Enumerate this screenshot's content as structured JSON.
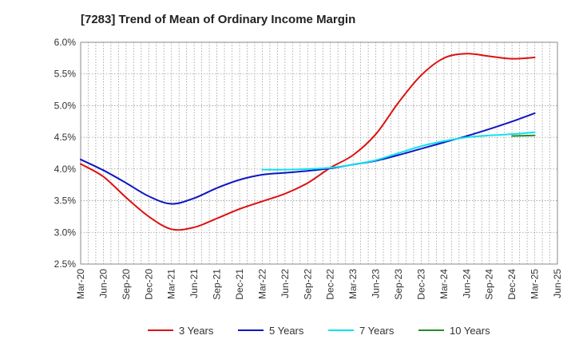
{
  "chart_data": {
    "type": "line",
    "title": "[7283]  Trend of Mean of Ordinary Income Margin",
    "xlabel": "",
    "ylabel": "",
    "x_ticks": [
      "Mar-20",
      "Jun-20",
      "Sep-20",
      "Dec-20",
      "Mar-21",
      "Jun-21",
      "Sep-21",
      "Dec-21",
      "Mar-22",
      "Jun-22",
      "Sep-22",
      "Dec-22",
      "Mar-23",
      "Jun-23",
      "Sep-23",
      "Dec-23",
      "Mar-24",
      "Jun-24",
      "Sep-24",
      "Dec-24",
      "Mar-25",
      "Jun-25"
    ],
    "y_ticks": [
      "2.5%",
      "3.0%",
      "3.5%",
      "4.0%",
      "4.5%",
      "5.0%",
      "5.5%",
      "6.0%"
    ],
    "ylim": [
      2.5,
      6.0
    ],
    "grid": true,
    "legend_position": "bottom",
    "series": [
      {
        "name": "3 Years",
        "color": "#dd1111",
        "x": [
          "Mar-20",
          "Jun-20",
          "Sep-20",
          "Dec-20",
          "Mar-21",
          "Jun-21",
          "Sep-21",
          "Dec-21",
          "Mar-22",
          "Jun-22",
          "Sep-22",
          "Dec-22",
          "Mar-23",
          "Jun-23",
          "Sep-23",
          "Dec-23",
          "Mar-24",
          "Jun-24",
          "Sep-24",
          "Dec-24",
          "Mar-25"
        ],
        "values": [
          4.08,
          3.88,
          3.55,
          3.25,
          3.05,
          3.08,
          3.22,
          3.37,
          3.49,
          3.61,
          3.78,
          4.02,
          4.22,
          4.55,
          5.05,
          5.48,
          5.75,
          5.82,
          5.78,
          5.74,
          5.76
        ]
      },
      {
        "name": "5 Years",
        "color": "#0c16c2",
        "x": [
          "Mar-20",
          "Jun-20",
          "Sep-20",
          "Dec-20",
          "Mar-21",
          "Jun-21",
          "Sep-21",
          "Dec-21",
          "Mar-22",
          "Jun-22",
          "Sep-22",
          "Dec-22",
          "Mar-23",
          "Jun-23",
          "Sep-23",
          "Dec-23",
          "Mar-24",
          "Jun-24",
          "Sep-24",
          "Dec-24",
          "Mar-25"
        ],
        "values": [
          4.15,
          3.98,
          3.78,
          3.57,
          3.45,
          3.54,
          3.7,
          3.83,
          3.91,
          3.94,
          3.97,
          4.01,
          4.07,
          4.13,
          4.22,
          4.32,
          4.42,
          4.52,
          4.63,
          4.75,
          4.88
        ]
      },
      {
        "name": "7 Years",
        "color": "#11e0ee",
        "x": [
          "Mar-22",
          "Jun-22",
          "Sep-22",
          "Dec-22",
          "Mar-23",
          "Jun-23",
          "Sep-23",
          "Dec-23",
          "Mar-24",
          "Jun-24",
          "Sep-24",
          "Dec-24",
          "Mar-25"
        ],
        "values": [
          3.99,
          3.99,
          4.0,
          4.02,
          4.07,
          4.14,
          4.25,
          4.36,
          4.44,
          4.5,
          4.53,
          4.55,
          4.58
        ]
      },
      {
        "name": "10 Years",
        "color": "#2a8a2a",
        "x": [
          "Dec-24",
          "Mar-25"
        ],
        "values": [
          4.52,
          4.53
        ]
      }
    ]
  }
}
